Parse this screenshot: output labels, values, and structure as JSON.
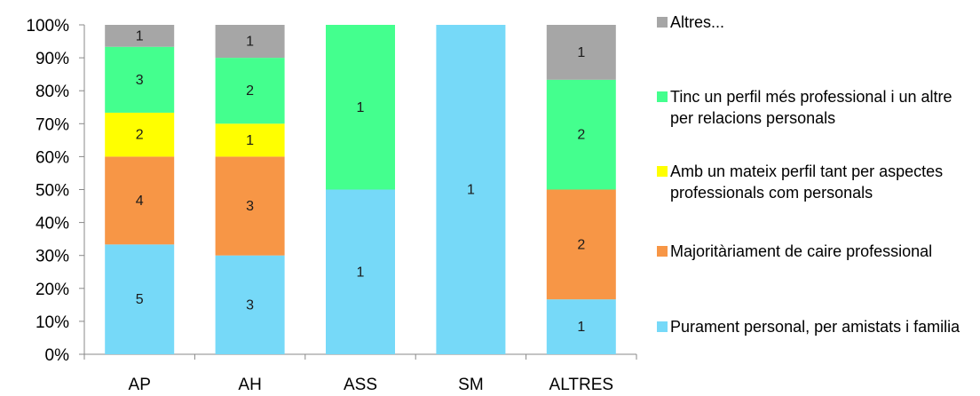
{
  "chart_data": {
    "type": "bar",
    "stacked": true,
    "percent_stacked": true,
    "title": "",
    "xlabel": "",
    "ylabel": "",
    "ylim": [
      0,
      100
    ],
    "y_ticks": [
      "0%",
      "10%",
      "20%",
      "30%",
      "40%",
      "50%",
      "60%",
      "70%",
      "80%",
      "90%",
      "100%"
    ],
    "grid": false,
    "legend_placement": "right",
    "categories": [
      "AP",
      "AH",
      "ASS",
      "SM",
      "ALTRES"
    ],
    "series": [
      {
        "name": "Purament personal, per amistats i familia",
        "color": "#76D9F8",
        "values": [
          5,
          3,
          1,
          1,
          1
        ],
        "labels": [
          "5",
          "3",
          "1",
          "1",
          "1"
        ]
      },
      {
        "name": "Majoritàriament de caire professional",
        "color": "#F79646",
        "values": [
          4,
          3,
          0,
          0,
          2
        ],
        "labels": [
          "4",
          "3",
          "",
          "",
          "2"
        ]
      },
      {
        "name": "Amb un mateix perfil tant per aspectes professionals com personals",
        "color": "#FFFF00",
        "values": [
          2,
          1,
          0,
          0,
          0
        ],
        "labels": [
          "2",
          "1",
          "",
          "",
          ""
        ]
      },
      {
        "name": "Tinc un perfil més professional i un altre per relacions personals",
        "color": "#44FF8E",
        "values": [
          3,
          2,
          1,
          0,
          2
        ],
        "labels": [
          "3",
          "2",
          "1",
          "",
          "2"
        ]
      },
      {
        "name": "Altres...",
        "color": "#A6A6A6",
        "values": [
          1,
          1,
          0,
          0,
          1
        ],
        "labels": [
          "1",
          "1",
          "",
          "",
          "1"
        ]
      }
    ],
    "legend_order": [
      4,
      3,
      2,
      1,
      0
    ]
  }
}
